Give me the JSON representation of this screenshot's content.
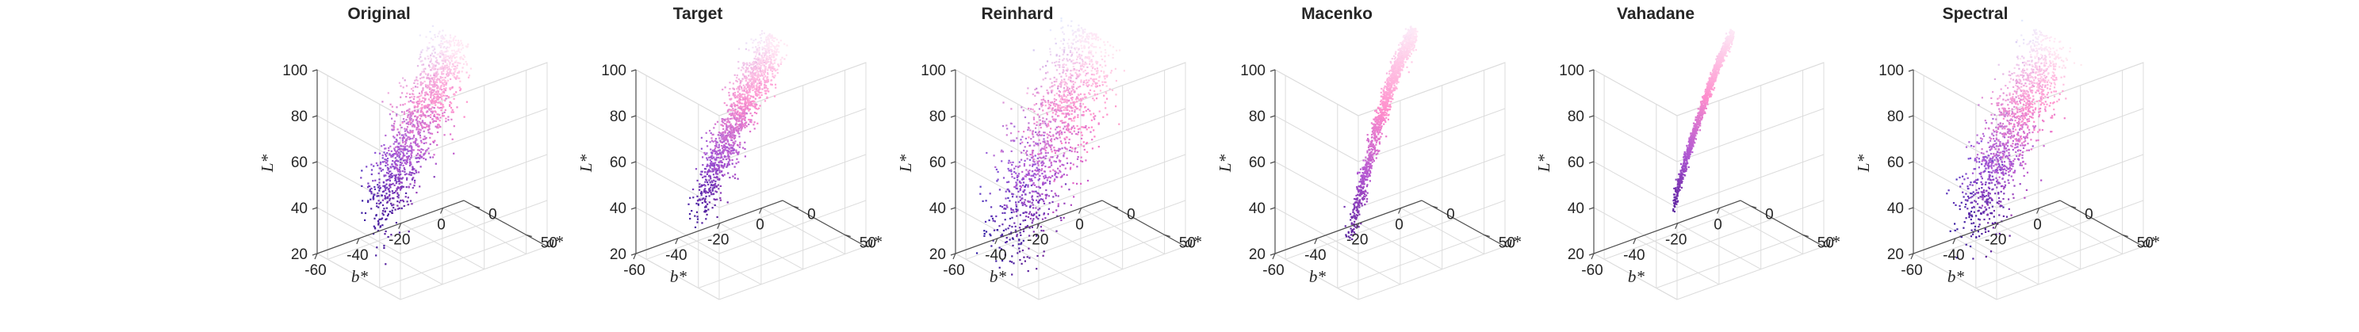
{
  "colors": {
    "background": "#ffffff",
    "axis": "#4d4d4d",
    "grid": "#dcdcdc",
    "text": "#262626",
    "point_dark": "#3d1fa3",
    "point_mid": "#9a55d6",
    "point_pink": "#f28fd0",
    "point_light": "#fde8f6"
  },
  "chart_data": [
    {
      "type": "scatter3d",
      "title": "Original",
      "xlabel": "b*",
      "ylabel": "a*",
      "zlabel": "L*",
      "xticks": [
        "-60",
        "-40",
        "-20",
        "0"
      ],
      "yticks": [
        "0",
        "50"
      ],
      "zticks": [
        "20",
        "40",
        "60",
        "80",
        "100"
      ],
      "xlim": [
        -60,
        10
      ],
      "ylim": [
        -10,
        70
      ],
      "zlim": [
        20,
        100
      ],
      "grid": true,
      "distribution": {
        "b_range": [
          -50,
          -5
        ],
        "a_at_start": 25,
        "a_at_end": 10,
        "L_range": [
          42,
          97
        ],
        "spread_L": 7,
        "spread_a": 9,
        "curvature": 0.05
      }
    },
    {
      "type": "scatter3d",
      "title": "Target",
      "xlabel": "b*",
      "ylabel": "a*",
      "zlabel": "L*",
      "xticks": [
        "-60",
        "-40",
        "-20",
        "0"
      ],
      "yticks": [
        "0",
        "50"
      ],
      "zticks": [
        "20",
        "40",
        "60",
        "80",
        "100"
      ],
      "xlim": [
        -60,
        10
      ],
      "ylim": [
        -10,
        70
      ],
      "zlim": [
        20,
        100
      ],
      "grid": true,
      "distribution": {
        "b_range": [
          -50,
          -5
        ],
        "a_at_start": 28,
        "a_at_end": 10,
        "L_range": [
          44,
          98
        ],
        "spread_L": 4.5,
        "spread_a": 6,
        "curvature": 0.2
      }
    },
    {
      "type": "scatter3d",
      "title": "Reinhard",
      "xlabel": "b*",
      "ylabel": "a*",
      "zlabel": "L*",
      "xticks": [
        "-60",
        "-40",
        "-20",
        "0"
      ],
      "yticks": [
        "0",
        "50"
      ],
      "zticks": [
        "20",
        "40",
        "60",
        "80",
        "100"
      ],
      "xlim": [
        -60,
        10
      ],
      "ylim": [
        -10,
        70
      ],
      "zlim": [
        20,
        100
      ],
      "grid": true,
      "distribution": {
        "b_range": [
          -55,
          -3
        ],
        "a_at_start": 25,
        "a_at_end": 8,
        "L_range": [
          30,
          98
        ],
        "spread_L": 10,
        "spread_a": 13,
        "curvature": 0.05
      }
    },
    {
      "type": "scatter3d",
      "title": "Macenko",
      "xlabel": "b*",
      "ylabel": "a*",
      "zlabel": "L*",
      "xticks": [
        "-60",
        "-40",
        "-20",
        "0"
      ],
      "yticks": [
        "0",
        "50"
      ],
      "zticks": [
        "20",
        "40",
        "60",
        "80",
        "100"
      ],
      "xlim": [
        -60,
        10
      ],
      "ylim": [
        -10,
        70
      ],
      "zlim": [
        20,
        100
      ],
      "grid": true,
      "distribution": {
        "b_range": [
          -45,
          0
        ],
        "a_at_start": 32,
        "a_at_end": 2,
        "L_range": [
          32,
          100
        ],
        "spread_L": 1.5,
        "spread_a": 2.5,
        "curvature": 0.55
      }
    },
    {
      "type": "scatter3d",
      "title": "Vahadane",
      "xlabel": "b*",
      "ylabel": "a*",
      "zlabel": "L*",
      "xticks": [
        "-60",
        "-40",
        "-20",
        "0"
      ],
      "yticks": [
        "0",
        "50"
      ],
      "zticks": [
        "20",
        "40",
        "60",
        "80",
        "100"
      ],
      "xlim": [
        -60,
        10
      ],
      "ylim": [
        -10,
        70
      ],
      "zlim": [
        20,
        100
      ],
      "grid": true,
      "distribution": {
        "b_range": [
          -42,
          0
        ],
        "a_at_start": 28,
        "a_at_end": 2,
        "L_range": [
          42,
          100
        ],
        "spread_L": 0.7,
        "spread_a": 1.2,
        "curvature": 0.35
      }
    },
    {
      "type": "scatter3d",
      "title": "Spectral",
      "xlabel": "b*",
      "ylabel": "a*",
      "zlabel": "L*",
      "xticks": [
        "-60",
        "-40",
        "-20",
        "0"
      ],
      "yticks": [
        "0",
        "50"
      ],
      "zticks": [
        "20",
        "40",
        "60",
        "80",
        "100"
      ],
      "xlim": [
        -60,
        10
      ],
      "ylim": [
        -10,
        70
      ],
      "zlim": [
        20,
        100
      ],
      "grid": true,
      "distribution": {
        "b_range": [
          -52,
          -5
        ],
        "a_at_start": 25,
        "a_at_end": 10,
        "L_range": [
          38,
          97
        ],
        "spread_L": 7.5,
        "spread_a": 10,
        "curvature": 0.05
      }
    }
  ]
}
